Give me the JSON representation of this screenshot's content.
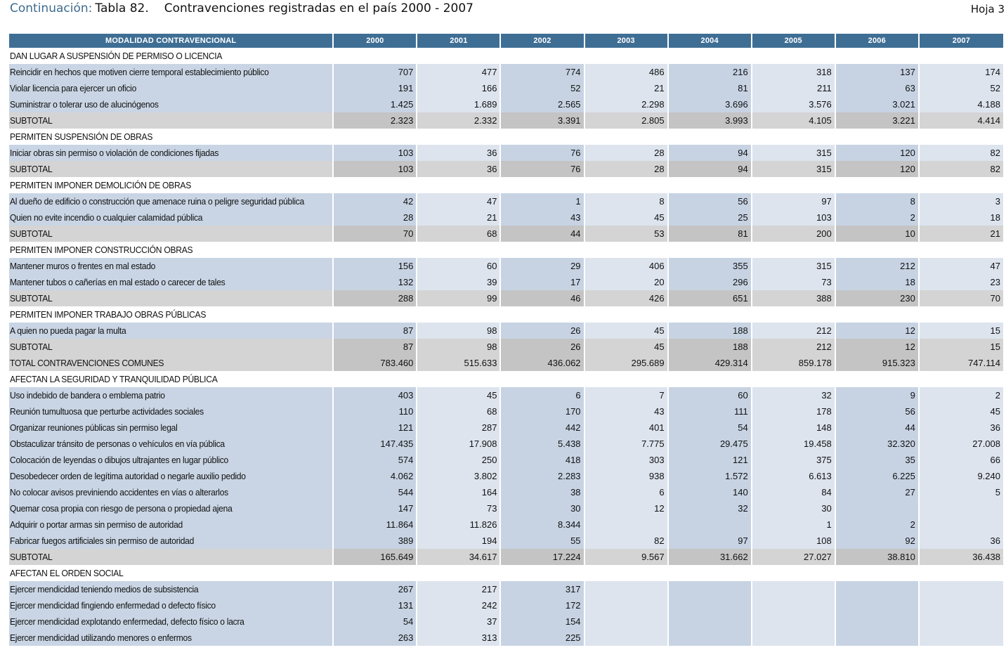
{
  "header": {
    "continuation": "Continuación:",
    "table_number": "Tabla 82.",
    "title": "Contravenciones registradas en el país 2000 - 2007",
    "sheet": "Hoja 3"
  },
  "table": {
    "columns": [
      "MODALIDAD CONTRAVENCIONAL",
      "2000",
      "2001",
      "2002",
      "2003",
      "2004",
      "2005",
      "2006",
      "2007"
    ],
    "rows": [
      {
        "type": "section",
        "label": "DAN LUGAR A SUSPENSIÓN DE PERMISO O LICENCIA",
        "values": []
      },
      {
        "type": "row",
        "label": "Reincidir en hechos que motiven cierre temporal establecimiento público",
        "values": [
          "707",
          "477",
          "774",
          "486",
          "216",
          "318",
          "137",
          "174"
        ]
      },
      {
        "type": "row",
        "label": "Violar licencia para ejercer un oficio",
        "values": [
          "191",
          "166",
          "52",
          "21",
          "81",
          "211",
          "63",
          "52"
        ]
      },
      {
        "type": "row",
        "label": "Suministrar o tolerar uso de alucinógenos",
        "values": [
          "1.425",
          "1.689",
          "2.565",
          "2.298",
          "3.696",
          "3.576",
          "3.021",
          "4.188"
        ]
      },
      {
        "type": "subtotal",
        "label": "SUBTOTAL",
        "values": [
          "2.323",
          "2.332",
          "3.391",
          "2.805",
          "3.993",
          "4.105",
          "3.221",
          "4.414"
        ]
      },
      {
        "type": "section",
        "label": "PERMITEN SUSPENSIÓN DE OBRAS",
        "values": []
      },
      {
        "type": "row",
        "label": "Iniciar obras sin permiso o violación de condiciones fijadas",
        "values": [
          "103",
          "36",
          "76",
          "28",
          "94",
          "315",
          "120",
          "82"
        ]
      },
      {
        "type": "subtotal",
        "label": "SUBTOTAL",
        "values": [
          "103",
          "36",
          "76",
          "28",
          "94",
          "315",
          "120",
          "82"
        ]
      },
      {
        "type": "section",
        "label": "PERMITEN IMPONER DEMOLICIÓN DE OBRAS",
        "values": []
      },
      {
        "type": "row",
        "label": "Al dueño de edificio o construcción que amenace ruina o peligre seguridad pública",
        "values": [
          "42",
          "47",
          "1",
          "8",
          "56",
          "97",
          "8",
          "3"
        ]
      },
      {
        "type": "row",
        "label": "Quien no evite incendio o cualquier calamidad pública",
        "values": [
          "28",
          "21",
          "43",
          "45",
          "25",
          "103",
          "2",
          "18"
        ]
      },
      {
        "type": "subtotal",
        "label": "SUBTOTAL",
        "values": [
          "70",
          "68",
          "44",
          "53",
          "81",
          "200",
          "10",
          "21"
        ]
      },
      {
        "type": "section",
        "label": "PERMITEN IMPONER CONSTRUCCIÓN OBRAS",
        "values": []
      },
      {
        "type": "row",
        "label": "Mantener muros o frentes en mal estado",
        "values": [
          "156",
          "60",
          "29",
          "406",
          "355",
          "315",
          "212",
          "47"
        ]
      },
      {
        "type": "row",
        "label": "Mantener tubos o cañerías en mal estado o carecer de tales",
        "values": [
          "132",
          "39",
          "17",
          "20",
          "296",
          "73",
          "18",
          "23"
        ]
      },
      {
        "type": "subtotal",
        "label": "SUBTOTAL",
        "values": [
          "288",
          "99",
          "46",
          "426",
          "651",
          "388",
          "230",
          "70"
        ]
      },
      {
        "type": "section",
        "label": "PERMITEN IMPONER TRABAJO OBRAS PÚBLICAS",
        "values": []
      },
      {
        "type": "row",
        "label": "A quien no pueda pagar la multa",
        "values": [
          "87",
          "98",
          "26",
          "45",
          "188",
          "212",
          "12",
          "15"
        ]
      },
      {
        "type": "subtotal",
        "label": "SUBTOTAL",
        "values": [
          "87",
          "98",
          "26",
          "45",
          "188",
          "212",
          "12",
          "15"
        ]
      },
      {
        "type": "subtotal",
        "label": "TOTAL CONTRAVENCIONES COMUNES",
        "values": [
          "783.460",
          "515.633",
          "436.062",
          "295.689",
          "429.314",
          "859.178",
          "915.323",
          "747.114"
        ]
      },
      {
        "type": "section",
        "label": "AFECTAN LA SEGURIDAD Y TRANQUILIDAD PÚBLICA",
        "values": []
      },
      {
        "type": "row",
        "label": "Uso indebido de bandera o emblema patrio",
        "values": [
          "403",
          "45",
          "6",
          "7",
          "60",
          "32",
          "9",
          "2"
        ]
      },
      {
        "type": "row",
        "label": "Reunión tumultuosa que perturbe actividades sociales",
        "values": [
          "110",
          "68",
          "170",
          "43",
          "111",
          "178",
          "56",
          "45"
        ]
      },
      {
        "type": "row",
        "label": "Organizar reuniones públicas sin permiso legal",
        "values": [
          "121",
          "287",
          "442",
          "401",
          "54",
          "148",
          "44",
          "36"
        ]
      },
      {
        "type": "row",
        "label": "Obstaculizar tránsito de personas o vehículos en vía pública",
        "values": [
          "147.435",
          "17.908",
          "5.438",
          "7.775",
          "29.475",
          "19.458",
          "32.320",
          "27.008"
        ]
      },
      {
        "type": "row",
        "label": "Colocación de leyendas o dibujos ultrajantes en lugar público",
        "values": [
          "574",
          "250",
          "418",
          "303",
          "121",
          "375",
          "35",
          "66"
        ]
      },
      {
        "type": "row",
        "label": "Desobedecer orden de legítima autoridad o negarle auxilio pedido",
        "values": [
          "4.062",
          "3.802",
          "2.283",
          "938",
          "1.572",
          "6.613",
          "6.225",
          "9.240"
        ]
      },
      {
        "type": "row",
        "label": "No colocar avisos previniendo accidentes en vías o alterarlos",
        "values": [
          "544",
          "164",
          "38",
          "6",
          "140",
          "84",
          "27",
          "5"
        ]
      },
      {
        "type": "row",
        "label": "Quemar cosa propia con riesgo de persona o propiedad ajena",
        "values": [
          "147",
          "73",
          "30",
          "12",
          "32",
          "30",
          "",
          ""
        ]
      },
      {
        "type": "row",
        "label": "Adquirir o portar armas sin permiso de autoridad",
        "values": [
          "11.864",
          "11.826",
          "8.344",
          "",
          "",
          "1",
          "2",
          ""
        ]
      },
      {
        "type": "row",
        "label": "Fabricar fuegos artificiales sin permiso de autoridad",
        "values": [
          "389",
          "194",
          "55",
          "82",
          "97",
          "108",
          "92",
          "36"
        ]
      },
      {
        "type": "subtotal",
        "label": "SUBTOTAL",
        "values": [
          "165.649",
          "34.617",
          "17.224",
          "9.567",
          "31.662",
          "27.027",
          "38.810",
          "36.438"
        ]
      },
      {
        "type": "section",
        "label": "AFECTAN EL ORDEN SOCIAL",
        "values": []
      },
      {
        "type": "row",
        "label": "Ejercer mendicidad teniendo medios de subsistencia",
        "values": [
          "267",
          "217",
          "317",
          "",
          "",
          "",
          "",
          ""
        ]
      },
      {
        "type": "row",
        "label": "Ejercer mendicidad fingiendo enfermedad o defecto físico",
        "values": [
          "131",
          "242",
          "172",
          "",
          "",
          "",
          "",
          ""
        ]
      },
      {
        "type": "row",
        "label": "Ejercer mendicidad explotando enfermedad, defecto físico o lacra",
        "values": [
          "54",
          "37",
          "154",
          "",
          "",
          "",
          "",
          ""
        ]
      },
      {
        "type": "row",
        "label": "Ejercer mendicidad utilizando menores o enfermos",
        "values": [
          "263",
          "313",
          "225",
          "",
          "",
          "",
          "",
          ""
        ]
      }
    ]
  }
}
